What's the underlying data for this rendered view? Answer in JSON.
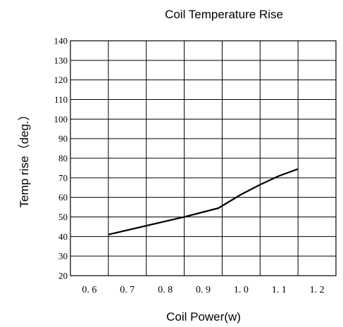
{
  "chart_data": {
    "type": "line",
    "title": "Coil Temperature Rise",
    "xlabel": "Coil Power(w)",
    "ylabel": "Temp rise（deg.）",
    "xlim": [
      0.55,
      1.25
    ],
    "ylim": [
      20,
      140
    ],
    "x_ticks": [
      0.6,
      0.7,
      0.8,
      0.9,
      1.0,
      1.1,
      1.2
    ],
    "x_tick_labels": [
      "0. 6",
      "0. 7",
      "0. 8",
      "0. 9",
      "1. 0",
      "1. 1",
      "1. 2"
    ],
    "y_ticks": [
      20,
      30,
      40,
      50,
      60,
      70,
      80,
      90,
      100,
      110,
      120,
      130,
      140
    ],
    "grid": true,
    "series": [
      {
        "x": [
          0.65,
          0.75,
          0.85,
          0.94,
          1.0,
          1.05,
          1.1,
          1.15
        ],
        "y": [
          41,
          45.5,
          50,
          54.5,
          61.5,
          66.5,
          71,
          74.5
        ]
      }
    ]
  }
}
